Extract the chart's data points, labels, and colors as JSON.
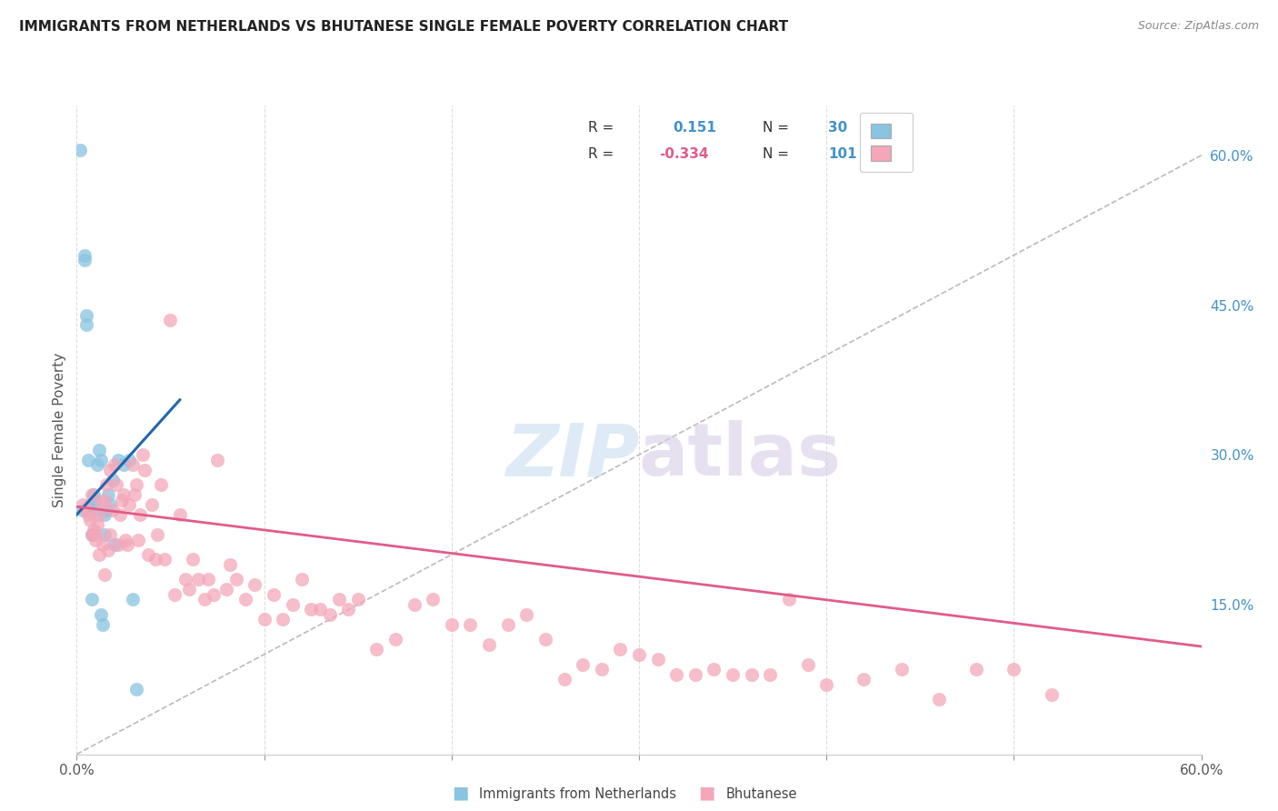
{
  "title": "IMMIGRANTS FROM NETHERLANDS VS BHUTANESE SINGLE FEMALE POVERTY CORRELATION CHART",
  "source": "Source: ZipAtlas.com",
  "ylabel": "Single Female Poverty",
  "x_min": 0.0,
  "x_max": 0.6,
  "y_min": 0.0,
  "y_max": 0.65,
  "y_ticks_right": [
    0.15,
    0.3,
    0.45,
    0.6
  ],
  "y_tick_labels_right": [
    "15.0%",
    "30.0%",
    "45.0%",
    "60.0%"
  ],
  "color_blue": "#89c4e1",
  "color_pink": "#f4a7b9",
  "color_blue_line": "#2166ac",
  "color_pink_line": "#e05c8a",
  "color_dashed": "#bbbbbb",
  "legend_r1_val": "0.151",
  "legend_r2_val": "-0.334",
  "legend_n1": "30",
  "legend_n2": "101",
  "blue_scatter_x": [
    0.002,
    0.004,
    0.004,
    0.005,
    0.005,
    0.006,
    0.007,
    0.008,
    0.009,
    0.01,
    0.01,
    0.011,
    0.012,
    0.013,
    0.014,
    0.015,
    0.015,
    0.016,
    0.017,
    0.018,
    0.019,
    0.02,
    0.022,
    0.025,
    0.028,
    0.03,
    0.032,
    0.003,
    0.008,
    0.013
  ],
  "blue_scatter_y": [
    0.605,
    0.495,
    0.5,
    0.44,
    0.43,
    0.295,
    0.25,
    0.22,
    0.26,
    0.255,
    0.245,
    0.29,
    0.305,
    0.295,
    0.13,
    0.24,
    0.22,
    0.245,
    0.26,
    0.25,
    0.275,
    0.21,
    0.295,
    0.29,
    0.295,
    0.155,
    0.065,
    0.245,
    0.155,
    0.14
  ],
  "pink_scatter_x": [
    0.003,
    0.005,
    0.006,
    0.007,
    0.008,
    0.008,
    0.009,
    0.01,
    0.01,
    0.011,
    0.012,
    0.012,
    0.013,
    0.014,
    0.015,
    0.015,
    0.016,
    0.017,
    0.018,
    0.018,
    0.019,
    0.02,
    0.021,
    0.022,
    0.023,
    0.024,
    0.025,
    0.026,
    0.027,
    0.028,
    0.03,
    0.031,
    0.032,
    0.033,
    0.034,
    0.035,
    0.036,
    0.038,
    0.04,
    0.042,
    0.043,
    0.045,
    0.047,
    0.05,
    0.052,
    0.055,
    0.058,
    0.06,
    0.062,
    0.065,
    0.068,
    0.07,
    0.073,
    0.075,
    0.08,
    0.082,
    0.085,
    0.09,
    0.095,
    0.1,
    0.105,
    0.11,
    0.115,
    0.12,
    0.125,
    0.13,
    0.135,
    0.14,
    0.145,
    0.15,
    0.16,
    0.17,
    0.18,
    0.19,
    0.2,
    0.21,
    0.22,
    0.23,
    0.24,
    0.25,
    0.26,
    0.27,
    0.28,
    0.29,
    0.3,
    0.31,
    0.32,
    0.33,
    0.34,
    0.35,
    0.36,
    0.37,
    0.38,
    0.39,
    0.4,
    0.42,
    0.44,
    0.46,
    0.48,
    0.5,
    0.52
  ],
  "pink_scatter_y": [
    0.25,
    0.245,
    0.24,
    0.235,
    0.26,
    0.22,
    0.225,
    0.22,
    0.215,
    0.23,
    0.2,
    0.24,
    0.25,
    0.21,
    0.18,
    0.255,
    0.27,
    0.205,
    0.285,
    0.22,
    0.245,
    0.29,
    0.27,
    0.21,
    0.24,
    0.255,
    0.26,
    0.215,
    0.21,
    0.25,
    0.29,
    0.26,
    0.27,
    0.215,
    0.24,
    0.3,
    0.285,
    0.2,
    0.25,
    0.195,
    0.22,
    0.27,
    0.195,
    0.435,
    0.16,
    0.24,
    0.175,
    0.165,
    0.195,
    0.175,
    0.155,
    0.175,
    0.16,
    0.295,
    0.165,
    0.19,
    0.175,
    0.155,
    0.17,
    0.135,
    0.16,
    0.135,
    0.15,
    0.175,
    0.145,
    0.145,
    0.14,
    0.155,
    0.145,
    0.155,
    0.105,
    0.115,
    0.15,
    0.155,
    0.13,
    0.13,
    0.11,
    0.13,
    0.14,
    0.115,
    0.075,
    0.09,
    0.085,
    0.105,
    0.1,
    0.095,
    0.08,
    0.08,
    0.085,
    0.08,
    0.08,
    0.08,
    0.155,
    0.09,
    0.07,
    0.075,
    0.085,
    0.055,
    0.085,
    0.085,
    0.06
  ],
  "blue_line_x": [
    0.0,
    0.055
  ],
  "blue_line_y": [
    0.24,
    0.355
  ],
  "pink_line_x": [
    0.0,
    0.6
  ],
  "pink_line_y": [
    0.248,
    0.108
  ],
  "dashed_line_x": [
    0.0,
    0.6
  ],
  "dashed_line_y": [
    0.0,
    0.6
  ]
}
